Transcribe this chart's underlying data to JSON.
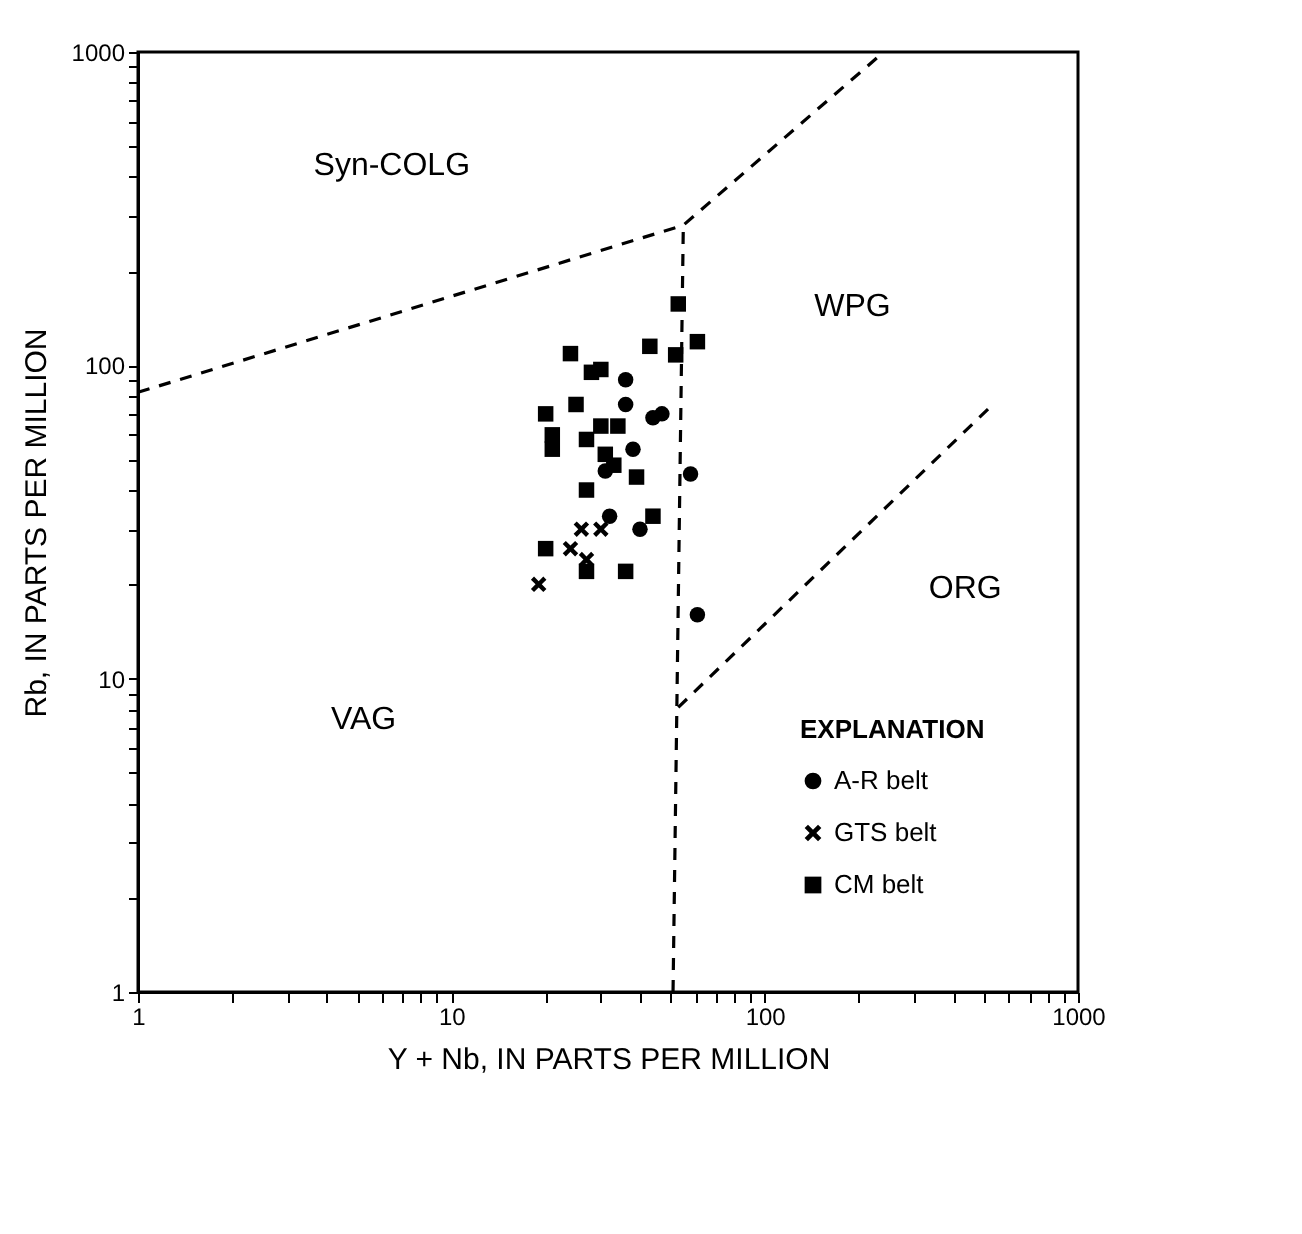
{
  "chart_data": {
    "type": "scatter",
    "xlabel": "Y + Nb, IN PARTS PER MILLION",
    "ylabel": "Rb, IN PARTS PER MILLION",
    "log": "xy",
    "grid": false,
    "legend": "bottom right",
    "legend_title": "EXPLANATION",
    "xlim": [
      1,
      1000
    ],
    "ylim": [
      1,
      1000
    ],
    "xticks": [
      1,
      {
        "value": 2,
        "label": null
      },
      {
        "value": 3,
        "label": null
      },
      {
        "value": 4,
        "label": null
      },
      {
        "value": 5,
        "label": null
      },
      {
        "value": 6,
        "label": null
      },
      {
        "value": 7,
        "label": null
      },
      {
        "value": 8,
        "label": null
      },
      {
        "value": 9,
        "label": null
      },
      10,
      {
        "value": 20,
        "label": null
      },
      {
        "value": 30,
        "label": null
      },
      {
        "value": 40,
        "label": null
      },
      {
        "value": 50,
        "label": null
      },
      {
        "value": 60,
        "label": null
      },
      {
        "value": 70,
        "label": null
      },
      {
        "value": 80,
        "label": null
      },
      {
        "value": 90,
        "label": null
      },
      100,
      {
        "value": 200,
        "label": null
      },
      {
        "value": 300,
        "label": null
      },
      {
        "value": 400,
        "label": null
      },
      {
        "value": 500,
        "label": null
      },
      {
        "value": 600,
        "label": null
      },
      {
        "value": 700,
        "label": null
      },
      {
        "value": 800,
        "label": null
      },
      {
        "value": 900,
        "label": null
      },
      1000
    ],
    "yticks": [
      1,
      {
        "value": 2,
        "label": null
      },
      {
        "value": 3,
        "label": null
      },
      {
        "value": 4,
        "label": null
      },
      {
        "value": 5,
        "label": null
      },
      {
        "value": 6,
        "label": null
      },
      {
        "value": 7,
        "label": null
      },
      {
        "value": 8,
        "label": null
      },
      {
        "value": 9,
        "label": null
      },
      10,
      {
        "value": 20,
        "label": null
      },
      {
        "value": 30,
        "label": null
      },
      {
        "value": 40,
        "label": null
      },
      {
        "value": 50,
        "label": null
      },
      {
        "value": 60,
        "label": null
      },
      {
        "value": 70,
        "label": null
      },
      {
        "value": 80,
        "label": null
      },
      {
        "value": 90,
        "label": null
      },
      100,
      {
        "value": 200,
        "label": null
      },
      {
        "value": 300,
        "label": null
      },
      {
        "value": 400,
        "label": null
      },
      {
        "value": 500,
        "label": null
      },
      {
        "value": 600,
        "label": null
      },
      {
        "value": 700,
        "label": null
      },
      {
        "value": 800,
        "label": null
      },
      {
        "value": 900,
        "label": null
      },
      1000
    ],
    "series": [
      {
        "type": "line",
        "color": "#000000",
        "line_style": "dashed",
        "x": [
          1,
          55,
          240
        ],
        "values": [
          82,
          280,
          1000
        ]
      },
      {
        "type": "line",
        "color": "#000000",
        "line_style": "dashed",
        "x": [
          55,
          51
        ],
        "values": [
          280,
          1
        ]
      },
      {
        "type": "line",
        "color": "#000000",
        "line_style": "dashed",
        "x": [
          53,
          520
        ],
        "values": [
          8.1,
          73
        ]
      },
      {
        "name": "A-R belt",
        "marker": "circle",
        "color": "#000000",
        "x": [
          36,
          36,
          44,
          47,
          38,
          58,
          40,
          32,
          61,
          31
        ],
        "values": [
          90,
          75,
          68,
          70,
          54,
          45,
          30,
          33,
          16,
          46
        ]
      },
      {
        "name": "GTS belt",
        "marker": "cross",
        "color": "#000000",
        "x": [
          19,
          26,
          24,
          27,
          30
        ],
        "values": [
          20,
          30,
          26,
          24,
          30
        ]
      },
      {
        "name": "CM belt",
        "marker": "square",
        "color": "#000000",
        "x": [
          53,
          61,
          43,
          52,
          24,
          20,
          21,
          21,
          25,
          27,
          30,
          34,
          27,
          39,
          44,
          20,
          27,
          36,
          31,
          33,
          28,
          30
        ],
        "values": [
          157,
          119,
          115,
          108,
          109,
          70,
          60,
          54,
          75,
          58,
          64,
          64,
          40,
          44,
          33,
          26,
          22,
          22,
          52,
          48,
          95,
          97
        ]
      }
    ],
    "annotations": [
      "Syn-COLG",
      "WPG",
      "ORG",
      "VAG"
    ]
  }
}
